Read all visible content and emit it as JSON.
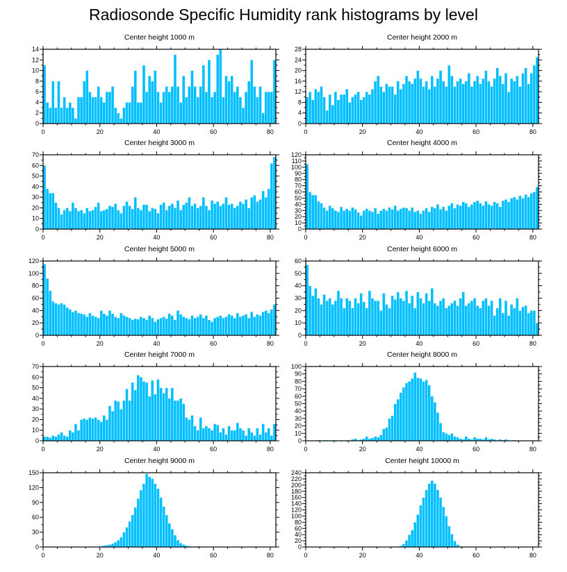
{
  "title": "Radiosonde Specific Humidity rank histograms by level",
  "colors": {
    "bar": "#00bfff",
    "frame": "#000000",
    "background": "#ffffff"
  },
  "chart_data": [
    {
      "type": "bar",
      "title": "Center height 1000 m",
      "xlim": [
        0,
        82
      ],
      "xticks": [
        0,
        20,
        40,
        60,
        80
      ],
      "ylim": [
        0,
        14
      ],
      "yticks": [
        0,
        2,
        4,
        6,
        8,
        10,
        12,
        14
      ],
      "values": [
        11,
        4,
        3,
        8,
        3,
        8,
        3,
        5,
        3,
        4,
        3,
        1,
        5,
        5,
        8,
        10,
        6,
        5,
        5,
        7,
        5,
        4,
        6,
        6,
        7,
        3,
        2,
        1,
        3,
        4,
        4,
        7,
        10,
        4,
        4,
        11,
        6,
        9,
        8,
        10,
        6,
        4,
        6,
        7,
        6,
        7,
        13,
        7,
        4,
        9,
        5,
        7,
        10,
        7,
        5,
        7,
        11,
        6,
        12,
        5,
        6,
        13,
        14,
        5,
        9,
        8,
        9,
        6,
        7,
        5,
        3,
        6,
        8,
        12,
        7,
        5,
        7,
        2,
        6,
        6,
        6,
        12
      ]
    },
    {
      "type": "bar",
      "title": "Center height 2000 m",
      "xlim": [
        0,
        82
      ],
      "xticks": [
        0,
        20,
        40,
        60,
        80
      ],
      "ylim": [
        0,
        28
      ],
      "yticks": [
        0,
        4,
        8,
        12,
        16,
        20,
        24,
        28
      ],
      "values": [
        10,
        12,
        9,
        13,
        12,
        14,
        10,
        5,
        11,
        7,
        12,
        9,
        11,
        11,
        13,
        8,
        10,
        11,
        12,
        9,
        10,
        12,
        11,
        13,
        16,
        18,
        14,
        12,
        15,
        14,
        14,
        11,
        16,
        13,
        15,
        18,
        16,
        15,
        17,
        20,
        17,
        14,
        16,
        13,
        18,
        14,
        17,
        20,
        16,
        14,
        22,
        18,
        14,
        16,
        17,
        15,
        16,
        19,
        14,
        16,
        18,
        15,
        17,
        20,
        16,
        14,
        17,
        21,
        18,
        15,
        19,
        12,
        17,
        16,
        18,
        14,
        19,
        21,
        15,
        19,
        22,
        25
      ]
    },
    {
      "type": "bar",
      "title": "Center height 3000 m",
      "xlim": [
        0,
        82
      ],
      "xticks": [
        0,
        20,
        40,
        60,
        80
      ],
      "ylim": [
        0,
        70
      ],
      "yticks": [
        0,
        10,
        20,
        30,
        40,
        50,
        60,
        70
      ],
      "values": [
        60,
        38,
        34,
        34,
        25,
        20,
        14,
        18,
        20,
        17,
        25,
        20,
        17,
        18,
        15,
        20,
        17,
        18,
        21,
        25,
        17,
        18,
        19,
        22,
        21,
        24,
        18,
        15,
        22,
        26,
        22,
        19,
        30,
        20,
        18,
        23,
        23,
        17,
        20,
        19,
        15,
        23,
        25,
        18,
        22,
        24,
        20,
        27,
        18,
        23,
        25,
        30,
        22,
        24,
        20,
        22,
        30,
        22,
        18,
        27,
        24,
        26,
        22,
        24,
        30,
        23,
        24,
        20,
        22,
        26,
        24,
        28,
        20,
        30,
        32,
        26,
        28,
        36,
        30,
        38,
        62,
        68
      ]
    },
    {
      "type": "bar",
      "title": "Center height 4000 m",
      "xlim": [
        0,
        82
      ],
      "xticks": [
        0,
        20,
        40,
        60,
        80
      ],
      "ylim": [
        0,
        120
      ],
      "yticks": [
        0,
        10,
        20,
        30,
        40,
        50,
        60,
        70,
        80,
        90,
        100,
        110,
        120
      ],
      "values": [
        105,
        60,
        55,
        55,
        45,
        42,
        35,
        30,
        38,
        34,
        30,
        28,
        36,
        30,
        33,
        30,
        35,
        32,
        27,
        22,
        30,
        33,
        30,
        28,
        34,
        25,
        30,
        33,
        30,
        35,
        32,
        38,
        30,
        33,
        35,
        34,
        30,
        35,
        28,
        30,
        25,
        30,
        34,
        28,
        36,
        34,
        40,
        32,
        36,
        30,
        38,
        42,
        34,
        40,
        38,
        44,
        42,
        36,
        40,
        44,
        46,
        42,
        38,
        45,
        40,
        38,
        44,
        42,
        36,
        46,
        48,
        44,
        50,
        52,
        48,
        54,
        50,
        56,
        52,
        58,
        60,
        68
      ]
    },
    {
      "type": "bar",
      "title": "Center height 5000 m",
      "xlim": [
        0,
        82
      ],
      "xticks": [
        0,
        20,
        40,
        60,
        80
      ],
      "ylim": [
        0,
        120
      ],
      "yticks": [
        0,
        20,
        40,
        60,
        80,
        100,
        120
      ],
      "values": [
        115,
        92,
        72,
        55,
        52,
        50,
        52,
        50,
        45,
        42,
        38,
        40,
        36,
        35,
        34,
        30,
        36,
        32,
        30,
        28,
        40,
        35,
        32,
        40,
        35,
        30,
        28,
        36,
        32,
        30,
        28,
        25,
        27,
        26,
        30,
        28,
        25,
        32,
        28,
        22,
        26,
        28,
        30,
        27,
        35,
        32,
        25,
        40,
        34,
        30,
        28,
        26,
        32,
        28,
        30,
        34,
        28,
        32,
        25,
        22,
        28,
        30,
        32,
        28,
        30,
        34,
        32,
        28,
        36,
        30,
        32,
        34,
        28,
        38,
        30,
        34,
        32,
        38,
        40,
        36,
        42,
        50
      ]
    },
    {
      "type": "bar",
      "title": "Center height 6000 m",
      "xlim": [
        0,
        82
      ],
      "xticks": [
        0,
        20,
        40,
        60,
        80
      ],
      "ylim": [
        0,
        60
      ],
      "yticks": [
        0,
        10,
        20,
        30,
        40,
        50,
        60
      ],
      "values": [
        57,
        40,
        32,
        38,
        30,
        25,
        33,
        28,
        30,
        25,
        28,
        36,
        30,
        22,
        30,
        28,
        22,
        30,
        26,
        34,
        27,
        22,
        36,
        30,
        28,
        28,
        20,
        34,
        25,
        22,
        32,
        29,
        35,
        30,
        28,
        36,
        26,
        32,
        22,
        35,
        30,
        26,
        34,
        28,
        38,
        26,
        24,
        28,
        30,
        22,
        24,
        26,
        28,
        24,
        30,
        35,
        24,
        26,
        28,
        30,
        24,
        22,
        28,
        30,
        24,
        28,
        16,
        22,
        30,
        18,
        28,
        16,
        25,
        22,
        30,
        20,
        23,
        24,
        18,
        20,
        20,
        10
      ]
    },
    {
      "type": "bar",
      "title": "Center height 7000 m",
      "xlim": [
        0,
        82
      ],
      "xticks": [
        0,
        20,
        40,
        60,
        80
      ],
      "ylim": [
        0,
        70
      ],
      "yticks": [
        0,
        10,
        20,
        30,
        40,
        50,
        60,
        70
      ],
      "values": [
        4,
        4,
        3,
        5,
        4,
        6,
        8,
        5,
        4,
        10,
        8,
        16,
        10,
        20,
        21,
        20,
        22,
        21,
        22,
        20,
        18,
        24,
        20,
        33,
        28,
        38,
        37,
        30,
        38,
        49,
        38,
        55,
        48,
        62,
        60,
        56,
        55,
        42,
        57,
        44,
        58,
        50,
        45,
        50,
        40,
        50,
        38,
        38,
        40,
        35,
        22,
        20,
        24,
        14,
        10,
        22,
        12,
        14,
        12,
        10,
        16,
        15,
        8,
        12,
        6,
        14,
        10,
        10,
        17,
        12,
        10,
        5,
        12,
        8,
        5,
        12,
        6,
        16,
        8,
        12,
        5,
        16
      ]
    },
    {
      "type": "bar",
      "title": "Center height 8000 m",
      "xlim": [
        0,
        82
      ],
      "xticks": [
        0,
        20,
        40,
        60,
        80
      ],
      "ylim": [
        0,
        100
      ],
      "yticks": [
        0,
        10,
        20,
        30,
        40,
        50,
        60,
        70,
        80,
        90,
        100
      ],
      "values": [
        0,
        0,
        0,
        0,
        1,
        0,
        1,
        1,
        0,
        1,
        1,
        0,
        1,
        0,
        1,
        0,
        2,
        3,
        1,
        2,
        3,
        6,
        3,
        4,
        6,
        5,
        8,
        16,
        18,
        30,
        34,
        50,
        56,
        65,
        72,
        78,
        80,
        84,
        92,
        85,
        84,
        80,
        82,
        75,
        60,
        52,
        38,
        24,
        12,
        10,
        8,
        10,
        6,
        5,
        3,
        2,
        6,
        3,
        2,
        5,
        3,
        3,
        2,
        5,
        2,
        3,
        2,
        1,
        2,
        1,
        2,
        1,
        0,
        1,
        0,
        0,
        0,
        0,
        0,
        0,
        0,
        0
      ]
    },
    {
      "type": "bar",
      "title": "Center height 9000 m",
      "xlim": [
        0,
        82
      ],
      "xticks": [
        0,
        20,
        40,
        60,
        80
      ],
      "ylim": [
        0,
        150
      ],
      "yticks": [
        0,
        30,
        60,
        90,
        120,
        150
      ],
      "values": [
        0,
        0,
        0,
        0,
        0,
        0,
        0,
        0,
        0,
        0,
        0,
        0,
        0,
        0,
        0,
        0,
        0,
        0,
        0,
        1,
        2,
        3,
        4,
        5,
        7,
        10,
        14,
        20,
        30,
        40,
        52,
        65,
        80,
        98,
        115,
        128,
        148,
        142,
        138,
        128,
        118,
        100,
        82,
        65,
        48,
        36,
        24,
        14,
        8,
        5,
        3,
        2,
        1,
        1,
        2,
        1,
        0,
        1,
        0,
        1,
        1,
        0,
        0,
        1,
        0,
        0,
        0,
        0,
        0,
        0,
        0,
        0,
        0,
        0,
        0,
        0,
        0,
        0,
        0,
        0,
        0,
        0
      ]
    },
    {
      "type": "bar",
      "title": "Center height 10000 m",
      "xlim": [
        0,
        82
      ],
      "xticks": [
        0,
        20,
        40,
        60,
        80
      ],
      "ylim": [
        0,
        240
      ],
      "yticks": [
        0,
        20,
        40,
        60,
        80,
        100,
        120,
        140,
        160,
        180,
        200,
        220,
        240
      ],
      "values": [
        0,
        0,
        0,
        0,
        0,
        0,
        0,
        0,
        0,
        0,
        0,
        0,
        0,
        0,
        0,
        0,
        0,
        0,
        0,
        0,
        0,
        0,
        0,
        0,
        0,
        0,
        0,
        0,
        0,
        0,
        0,
        0,
        2,
        4,
        10,
        22,
        40,
        55,
        80,
        105,
        135,
        160,
        185,
        205,
        215,
        205,
        185,
        160,
        130,
        100,
        68,
        42,
        20,
        8,
        3,
        1,
        0,
        0,
        0,
        0,
        0,
        0,
        0,
        0,
        0,
        0,
        0,
        0,
        0,
        0,
        0,
        0,
        0,
        0,
        0,
        0,
        0,
        0,
        0,
        0,
        0,
        0
      ]
    }
  ]
}
